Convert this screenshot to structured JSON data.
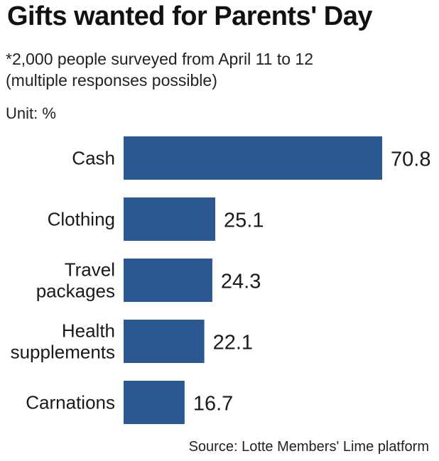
{
  "header": {
    "title": "Gifts wanted for Parents' Day",
    "subtitle_line1": "*2,000 people surveyed from April 11 to 12",
    "subtitle_line2": "(multiple responses possible)",
    "unit": "Unit: %"
  },
  "footer": {
    "source": "Source: Lotte Members' Lime platform"
  },
  "colors": {
    "bar": "#2b5890"
  },
  "chart_data": {
    "type": "bar",
    "orientation": "horizontal",
    "title": "Gifts wanted for Parents' Day",
    "categories": [
      [
        "Cash"
      ],
      [
        "Clothing"
      ],
      [
        "Travel",
        "packages"
      ],
      [
        "Health",
        "supplements"
      ],
      [
        "Carnations"
      ]
    ],
    "values": [
      70.8,
      25.1,
      24.3,
      22.1,
      16.7
    ],
    "value_labels": [
      "70.8",
      "25.1",
      "24.3",
      "22.1",
      "16.7"
    ],
    "unit": "%",
    "xlim": [
      0,
      70.8
    ],
    "grid": false,
    "legend": "none"
  }
}
